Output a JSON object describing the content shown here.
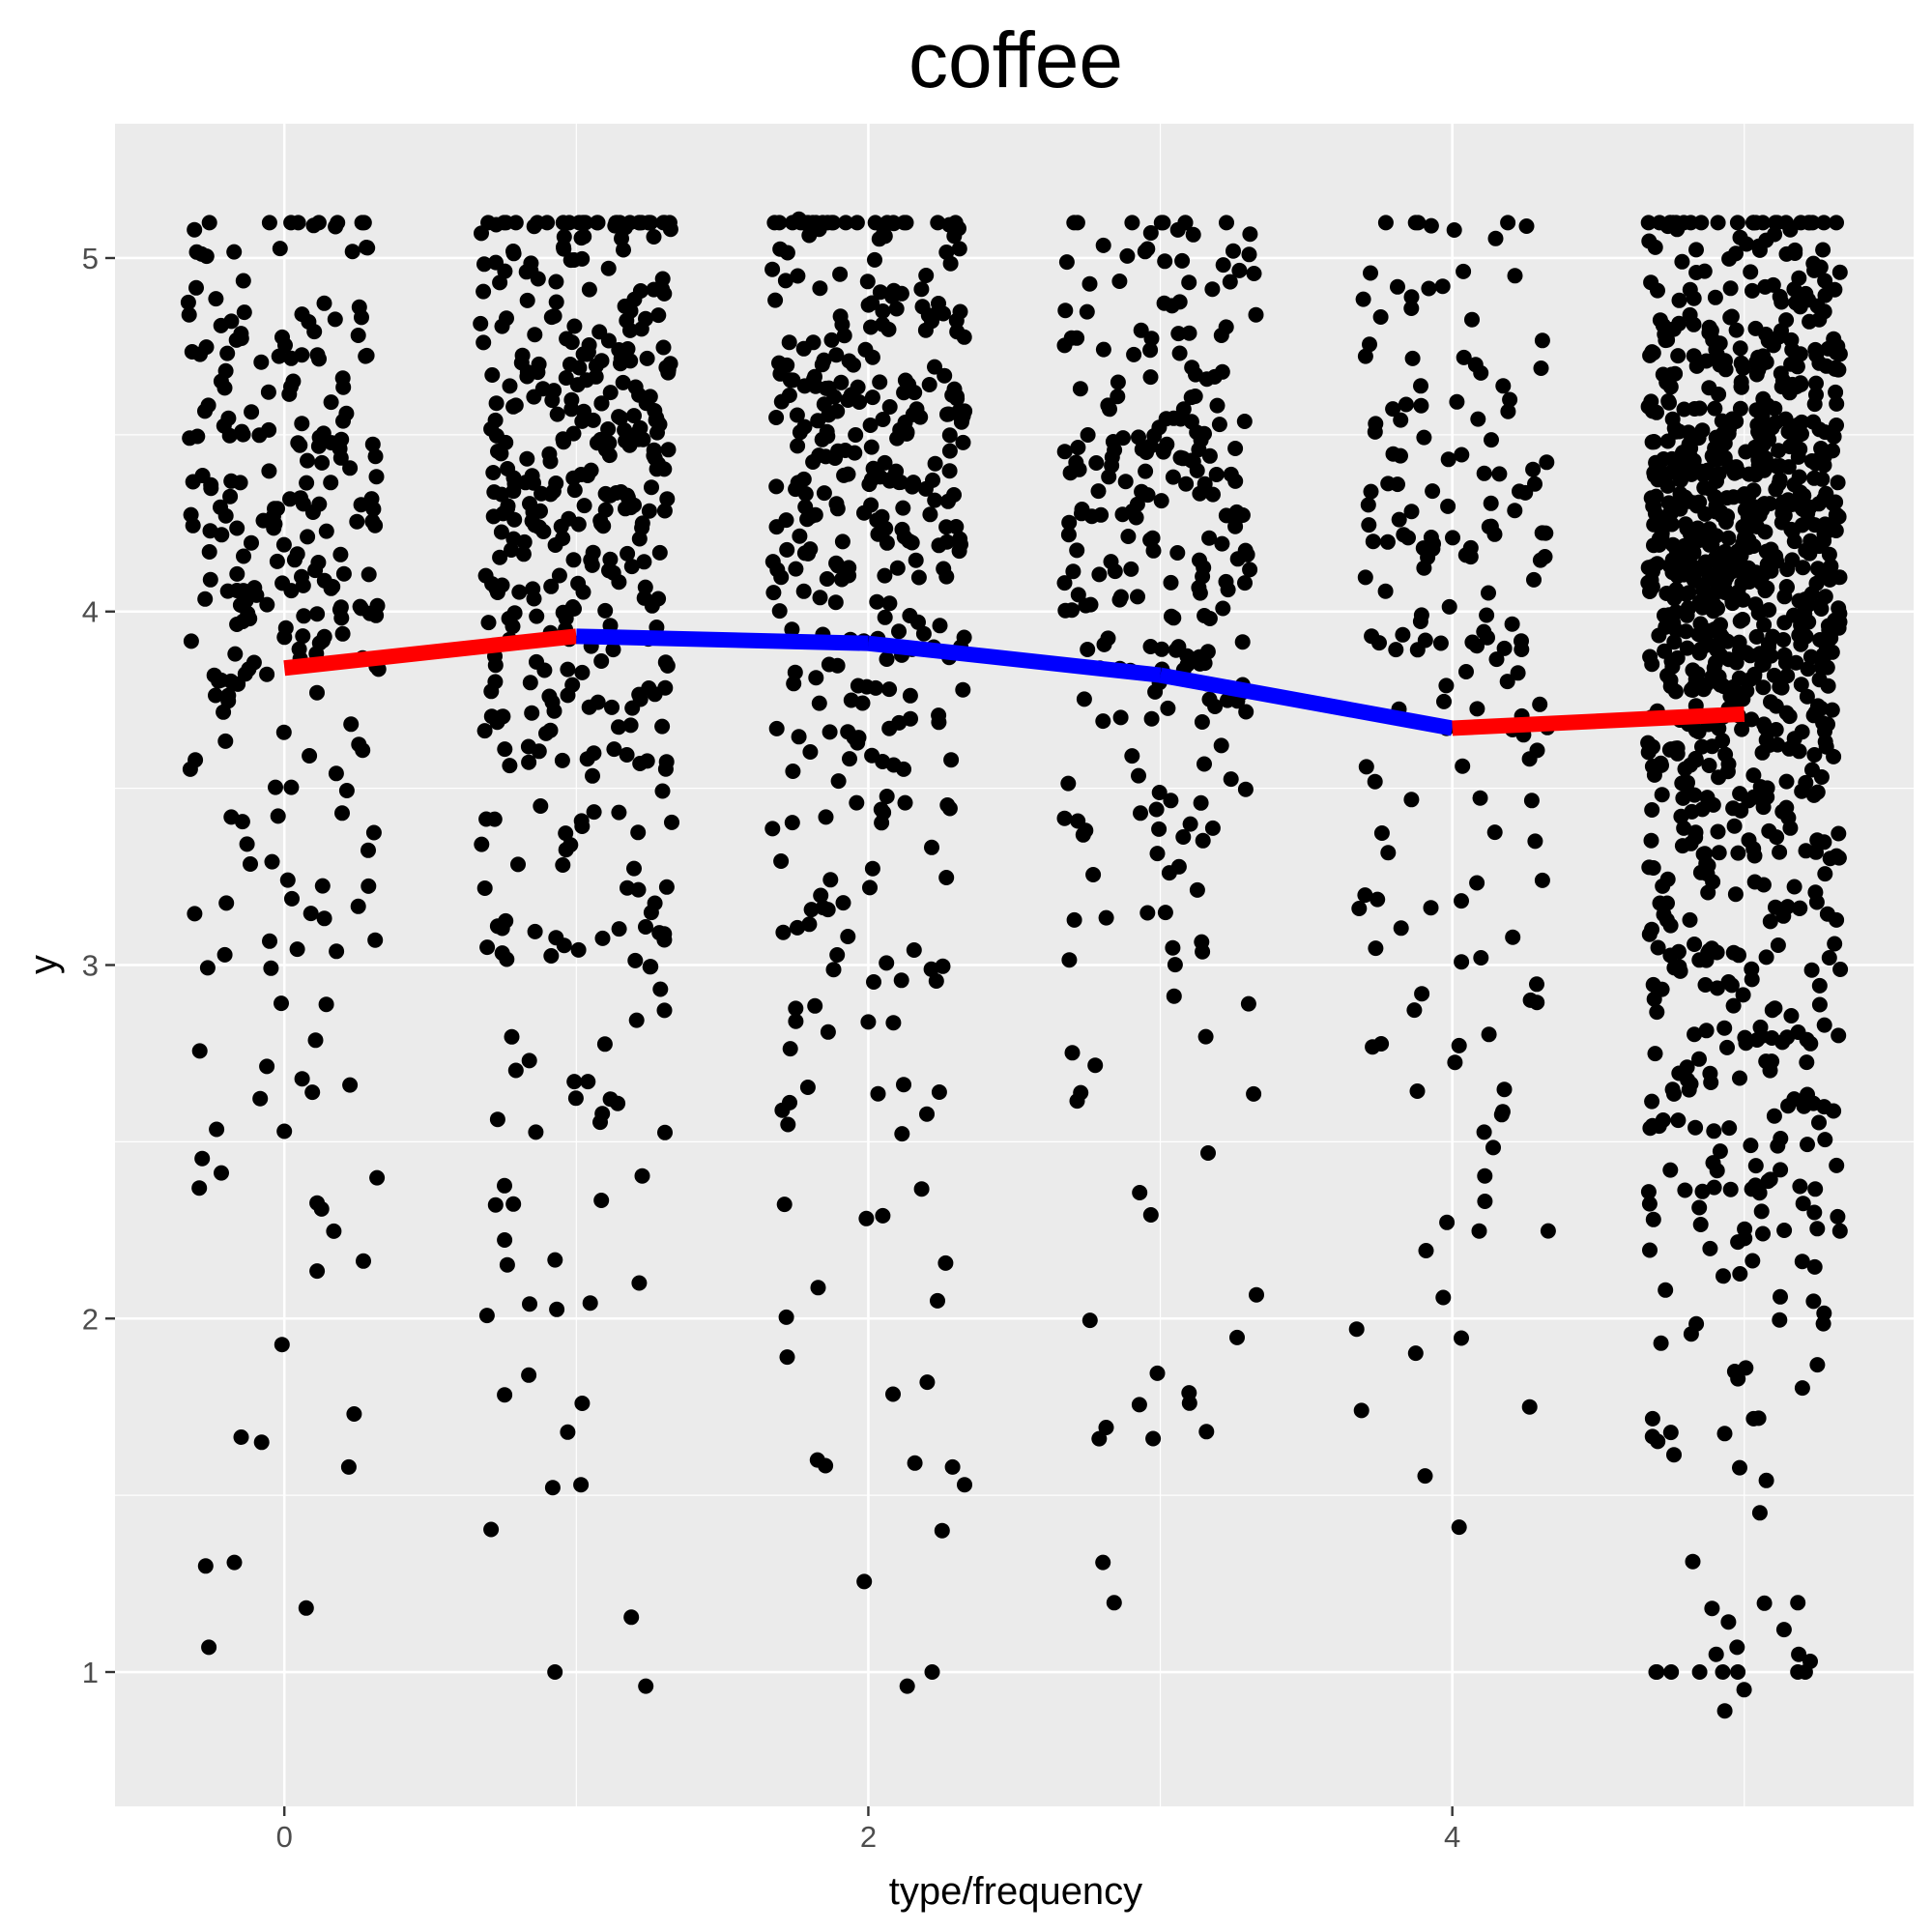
{
  "chart_data": {
    "type": "scatter",
    "title": "coffee",
    "xlabel": "type/frequency",
    "ylabel": "y",
    "xlim": [
      -0.58,
      5.58
    ],
    "ylim": [
      0.62,
      5.38
    ],
    "x_ticks": [
      0,
      2,
      4
    ],
    "x_tick_labels": [
      "0",
      "2",
      "4"
    ],
    "y_ticks": [
      1,
      2,
      3,
      4,
      5
    ],
    "y_tick_labels": [
      "1",
      "2",
      "3",
      "4",
      "5"
    ],
    "grid": true,
    "panel_background": "#ebebeb",
    "jitter_width": 0.33,
    "series": [
      {
        "group_x": 0,
        "n": 260,
        "mean": 3.84,
        "spread": 0.88,
        "extremes": [
          1.07,
          1.3,
          1.31,
          1.58,
          1.65,
          1.73,
          5.08,
          5.03
        ]
      },
      {
        "group_x": 1,
        "n": 420,
        "mean": 3.93,
        "spread": 0.85,
        "extremes": [
          0.96,
          1.53,
          1.76,
          1.84,
          5.07,
          5.06
        ]
      },
      {
        "group_x": 2,
        "n": 360,
        "mean": 3.91,
        "spread": 0.88,
        "extremes": [
          0.96,
          1.4,
          1.53,
          1.58,
          1.82,
          5.11,
          5.1
        ]
      },
      {
        "group_x": 3,
        "n": 260,
        "mean": 3.82,
        "spread": 0.85,
        "extremes": [
          1.31,
          1.66,
          1.68,
          1.79,
          5.02,
          5.01
        ]
      },
      {
        "group_x": 4,
        "n": 170,
        "mean": 3.67,
        "spread": 0.95,
        "extremes": [
          1.41,
          1.74,
          1.75,
          4.95,
          4.92
        ]
      },
      {
        "group_x": 5,
        "n": 1000,
        "mean": 3.71,
        "spread": 1.0,
        "extremes": [
          0.89,
          0.95,
          1.03,
          1.05,
          1.07,
          1.12,
          1.18,
          5.1,
          5.09,
          5.08
        ]
      }
    ],
    "mean_line": {
      "points": [
        {
          "x": 0,
          "y": 3.84
        },
        {
          "x": 1,
          "y": 3.93
        },
        {
          "x": 2,
          "y": 3.91
        },
        {
          "x": 3,
          "y": 3.82
        },
        {
          "x": 4,
          "y": 3.67
        },
        {
          "x": 5,
          "y": 3.71
        }
      ],
      "segment_colors": [
        "#ff0000",
        "#0000ff",
        "#0000ff",
        "#0000ff",
        "#ff0000"
      ]
    },
    "point_color": "#000000"
  }
}
